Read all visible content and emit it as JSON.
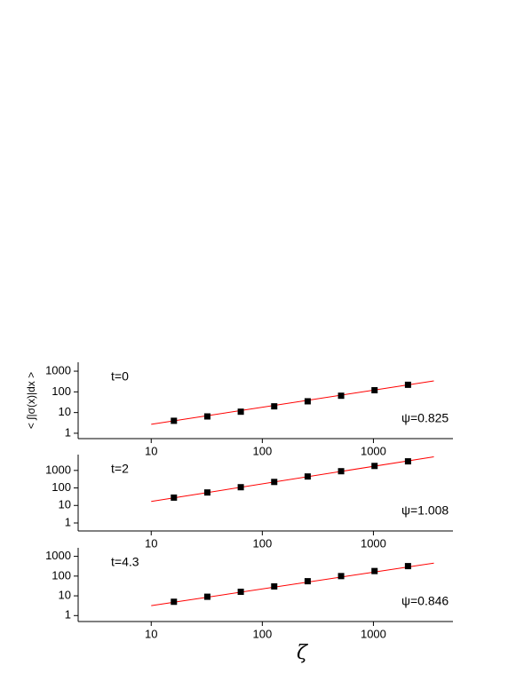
{
  "chart_data": [
    {
      "type": "scatter",
      "ylabel": "< ∫|σ(x)|dx >",
      "annotations": [
        "t=0",
        "ψ=0.825"
      ],
      "x": [
        16,
        32,
        64,
        128,
        256,
        512,
        1024,
        2048
      ],
      "values": [
        4,
        6.5,
        11,
        20,
        35,
        65,
        120,
        220
      ],
      "color": "#000000",
      "fit": {
        "x": [
          10,
          3500
        ],
        "values": [
          2.7,
          340
        ],
        "color": "#ff0000"
      },
      "xlim": [
        2.2,
        5200
      ],
      "ylim": [
        0.55,
        2700
      ],
      "xticks": [
        10,
        100,
        1000
      ],
      "yticks": [
        1,
        10,
        100,
        1000
      ],
      "log": true
    },
    {
      "type": "scatter",
      "annotations": [
        "t=2",
        "ψ=1.008"
      ],
      "x": [
        16,
        32,
        64,
        128,
        256,
        512,
        1024,
        2048
      ],
      "values": [
        28,
        55,
        110,
        220,
        450,
        900,
        1800,
        3300
      ],
      "color": "#000000",
      "fit": {
        "x": [
          10,
          3500
        ],
        "values": [
          17,
          6000
        ],
        "color": "#ff0000"
      },
      "xlim": [
        2.2,
        5200
      ],
      "ylim": [
        0.35,
        8000
      ],
      "xticks": [
        10,
        100,
        1000
      ],
      "yticks": [
        1,
        10,
        100,
        1000
      ],
      "log": true
    },
    {
      "type": "scatter",
      "xlabel": "ζ",
      "annotations": [
        "t=4.3",
        "ψ=0.846"
      ],
      "x": [
        16,
        32,
        64,
        128,
        256,
        512,
        1024,
        2048
      ],
      "values": [
        5,
        9,
        16,
        30,
        55,
        100,
        180,
        320
      ],
      "color": "#000000",
      "fit": {
        "x": [
          10,
          3500
        ],
        "values": [
          3.2,
          455
        ],
        "color": "#ff0000"
      },
      "xlim": [
        2.2,
        5200
      ],
      "ylim": [
        0.5,
        2700
      ],
      "xticks": [
        10,
        100,
        1000
      ],
      "yticks": [
        1,
        10,
        100,
        1000
      ],
      "log": true
    }
  ]
}
